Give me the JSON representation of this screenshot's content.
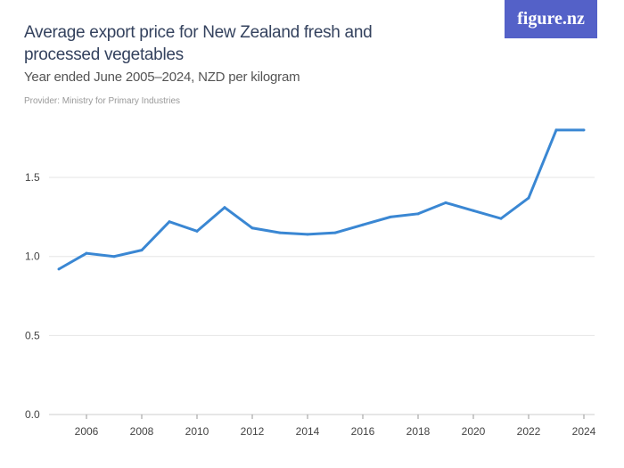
{
  "header": {
    "title": "Average export price for New Zealand fresh and processed vegetables",
    "subtitle": "Year ended June 2005–2024, NZD per kilogram",
    "provider": "Provider: Ministry for Primary Industries",
    "logo": "figure.nz",
    "logo_color": "#5461c8"
  },
  "chart_data": {
    "type": "line",
    "title": "Average export price for New Zealand fresh and processed vegetables",
    "subtitle": "Year ended June 2005–2024, NZD per kilogram",
    "x": [
      2005,
      2006,
      2007,
      2008,
      2009,
      2010,
      2011,
      2012,
      2013,
      2014,
      2015,
      2016,
      2017,
      2018,
      2019,
      2020,
      2021,
      2022,
      2023,
      2024
    ],
    "series": [
      {
        "values": [
          0.92,
          1.02,
          1.0,
          1.04,
          1.22,
          1.16,
          1.31,
          1.18,
          1.15,
          1.14,
          1.15,
          1.2,
          1.25,
          1.27,
          1.34,
          1.29,
          1.24,
          1.37,
          1.8,
          1.8
        ],
        "color": "#3a87d3"
      }
    ],
    "xlim": [
      2005,
      2024
    ],
    "ylim": [
      0,
      1.8
    ],
    "x_ticks": [
      "2006",
      "2008",
      "2010",
      "2012",
      "2014",
      "2016",
      "2018",
      "2020",
      "2022",
      "2024"
    ],
    "y_ticks": [
      "0.0",
      "0.5",
      "1.0",
      "1.5"
    ],
    "grid": true,
    "xlabel": "",
    "ylabel": ""
  }
}
